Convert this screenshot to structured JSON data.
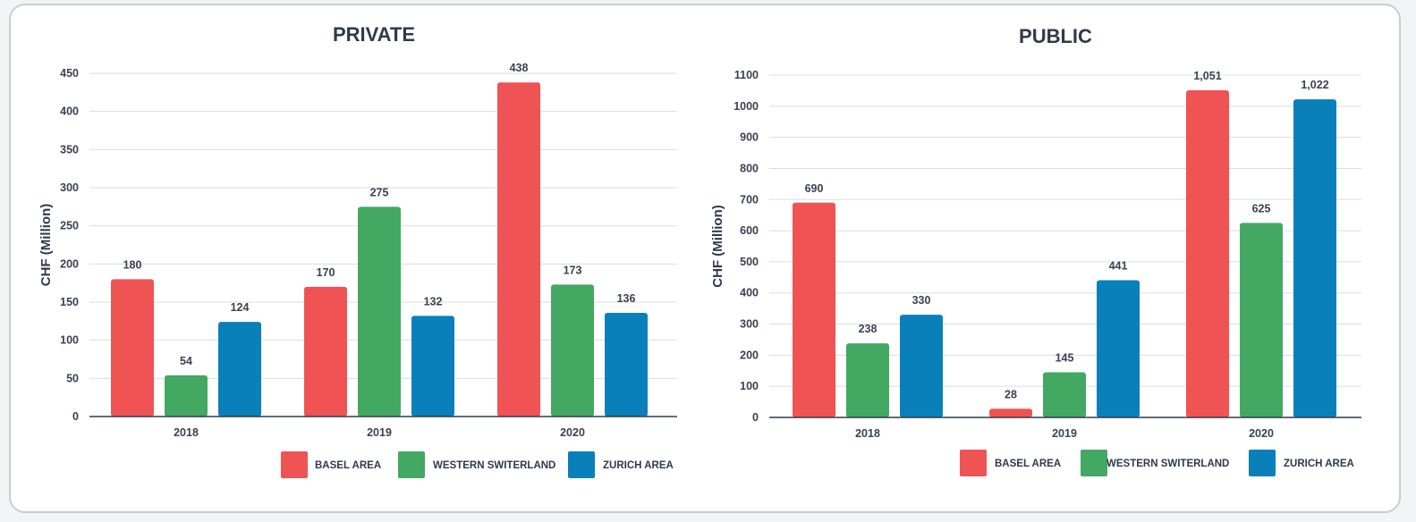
{
  "colors": {
    "BASEL AREA": "#ef5354",
    "WESTERN SWITERLAND": "#43a862",
    "ZURICH AREA": "#0a80ba"
  },
  "chart_data": [
    {
      "type": "bar",
      "title": "PRIVATE",
      "ylabel": "CHF (Million)",
      "categories": [
        "2018",
        "2019",
        "2020"
      ],
      "ylim": [
        0,
        450
      ],
      "yticks": [
        0,
        50,
        100,
        150,
        200,
        250,
        300,
        350,
        400,
        450
      ],
      "series": [
        {
          "name": "BASEL AREA",
          "values": [
            180,
            170,
            438
          ],
          "labels": [
            "180",
            "170",
            "438"
          ]
        },
        {
          "name": "WESTERN SWITERLAND",
          "values": [
            54,
            275,
            173
          ],
          "labels": [
            "54",
            "275",
            "173"
          ]
        },
        {
          "name": "ZURICH AREA",
          "values": [
            124,
            132,
            136
          ],
          "labels": [
            "124",
            "132",
            "136"
          ]
        }
      ],
      "legend": "bottom-right"
    },
    {
      "type": "bar",
      "title": "PUBLIC",
      "ylabel": "CHF (Million)",
      "categories": [
        "2018",
        "2019",
        "2020"
      ],
      "ylim": [
        0,
        1100
      ],
      "yticks": [
        0,
        100,
        200,
        300,
        400,
        500,
        600,
        700,
        800,
        900,
        1000,
        1100
      ],
      "series": [
        {
          "name": "BASEL AREA",
          "values": [
            690,
            28,
            1051
          ],
          "labels": [
            "690",
            "28",
            "1,051"
          ]
        },
        {
          "name": "WESTERN SWITERLAND",
          "values": [
            238,
            145,
            625
          ],
          "labels": [
            "238",
            "145",
            "625"
          ]
        },
        {
          "name": "ZURICH AREA",
          "values": [
            330,
            441,
            1022
          ],
          "labels": [
            "330",
            "441",
            "1,022"
          ]
        }
      ],
      "legend": "bottom-right"
    }
  ]
}
